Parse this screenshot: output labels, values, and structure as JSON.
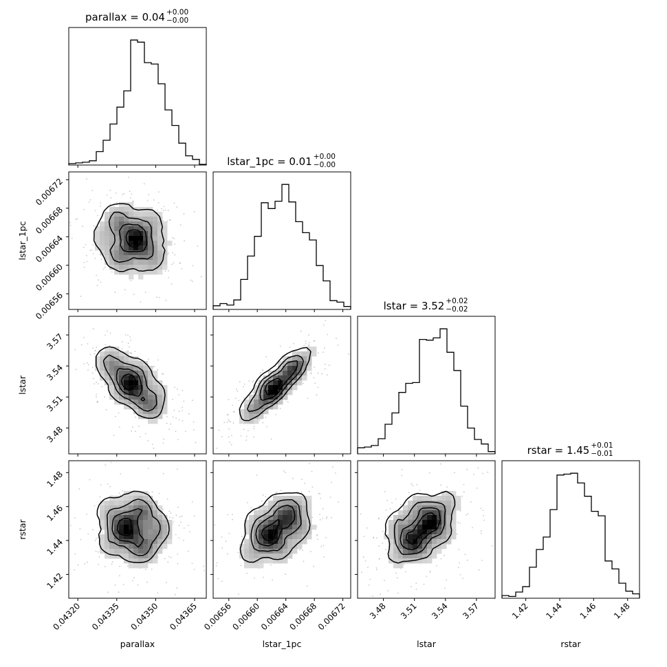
{
  "chart_data": {
    "type": "corner",
    "parameters": [
      "parallax",
      "lstar_1pc",
      "lstar",
      "rstar"
    ],
    "axis_labels": [
      "parallax",
      "lstar_1pc",
      "lstar",
      "rstar"
    ],
    "titles": [
      {
        "param": "parallax",
        "text": "parallax = 0.04",
        "upper": "+0.00",
        "lower": "−0.00"
      },
      {
        "param": "lstar_1pc",
        "text": "lstar_1pc = 0.01",
        "upper": "+0.00",
        "lower": "−0.00"
      },
      {
        "param": "lstar",
        "text": "lstar = 3.52",
        "upper": "+0.02",
        "lower": "−0.02"
      },
      {
        "param": "rstar",
        "text": "rstar = 1.45",
        "upper": "+0.01",
        "lower": "−0.01"
      }
    ],
    "ranges": [
      [
        0.043165,
        0.043695
      ],
      [
        0.006538,
        0.006731
      ],
      [
        3.455,
        3.588
      ],
      [
        1.406,
        1.487
      ]
    ],
    "ticks": [
      {
        "values": [
          0.0432,
          0.04335,
          0.0435,
          0.04365
        ],
        "labels": [
          "0.04320",
          "0.04335",
          "0.04350",
          "0.04365"
        ]
      },
      {
        "values": [
          0.00656,
          0.0066,
          0.00664,
          0.00668,
          0.00672
        ],
        "labels": [
          "0.00656",
          "0.00660",
          "0.00664",
          "0.00668",
          "0.00672"
        ]
      },
      {
        "values": [
          3.48,
          3.51,
          3.54,
          3.57
        ],
        "labels": [
          "3.48",
          "3.51",
          "3.54",
          "3.57"
        ]
      },
      {
        "values": [
          1.42,
          1.44,
          1.46,
          1.48
        ],
        "labels": [
          "1.42",
          "1.44",
          "1.46",
          "1.48"
        ]
      }
    ],
    "histograms": [
      {
        "param": "parallax",
        "bins": 20,
        "counts": [
          2,
          3,
          4,
          6,
          19,
          35,
          58,
          82,
          105,
          177,
          174,
          145,
          143,
          115,
          78,
          56,
          31,
          13,
          8,
          1
        ]
      },
      {
        "param": "lstar_1pc",
        "bins": 20,
        "counts": [
          5,
          8,
          6,
          13,
          41,
          73,
          100,
          146,
          138,
          148,
          171,
          147,
          120,
          105,
          95,
          60,
          39,
          12,
          10,
          4
        ]
      },
      {
        "param": "lstar",
        "bins": 20,
        "counts": [
          8,
          9,
          11,
          20,
          39,
          54,
          81,
          93,
          94,
          151,
          150,
          153,
          165,
          134,
          110,
          63,
          34,
          19,
          13,
          3
        ]
      },
      {
        "param": "rstar",
        "bins": 20,
        "counts": [
          3,
          2,
          7,
          13,
          35,
          55,
          69,
          100,
          139,
          140,
          141,
          130,
          115,
          98,
          93,
          42,
          33,
          17,
          8,
          5
        ]
      }
    ],
    "correlations": {
      "1-0": -0.1,
      "2-0": -0.55,
      "2-1": 0.82,
      "3-0": -0.05,
      "3-1": 0.4,
      "3-2": 0.4
    },
    "density_levels": [
      "0.5-sigma",
      "1-sigma",
      "1.5-sigma",
      "2-sigma"
    ],
    "colors": {
      "lines": "#000000",
      "points": "#9a9a9a",
      "density_max": "#000000"
    }
  }
}
